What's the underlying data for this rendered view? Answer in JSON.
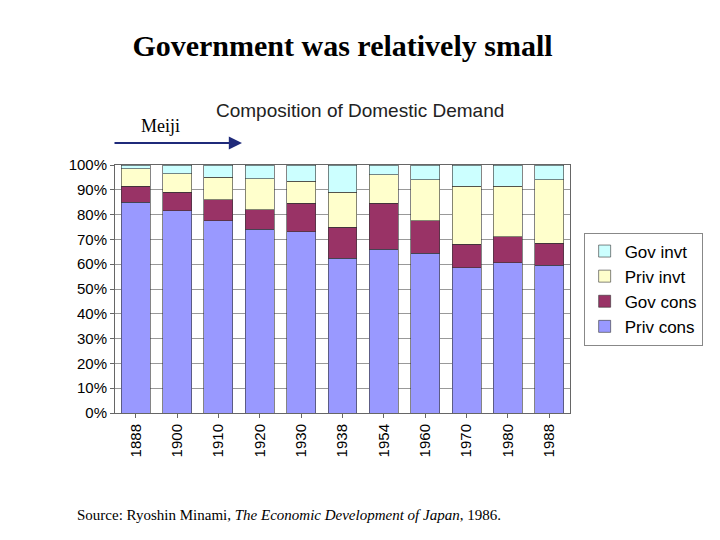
{
  "chart_data": {
    "type": "bar",
    "heading": "Government was relatively small",
    "title": "Composition of Domestic Demand",
    "annotations": [
      {
        "text": "Meiji"
      }
    ],
    "source": {
      "prefix": "Source: Ryoshin Minami, ",
      "book": "The Economic Development of Japan",
      "suffix": ", 1986."
    },
    "stacked": true,
    "grid": true,
    "legend": "right",
    "categories": [
      "1888",
      "1900",
      "1910",
      "1920",
      "1930",
      "1938",
      "1954",
      "1960",
      "1970",
      "1980",
      "1988"
    ],
    "series": [
      {
        "name": "Priv cons",
        "color": "#9999ff",
        "values": [
          85,
          81.5,
          77.5,
          74,
          73,
          62.5,
          66,
          64.5,
          58.5,
          60.5,
          59.5
        ]
      },
      {
        "name": "Gov cons",
        "color": "#993366",
        "values": [
          6.5,
          7.5,
          8.5,
          8,
          11.5,
          12.5,
          18.5,
          13,
          9.5,
          10.5,
          9
        ]
      },
      {
        "name": "Priv invt",
        "color": "#ffffcc",
        "values": [
          7,
          7.5,
          9,
          12.5,
          9,
          14,
          11.5,
          16.5,
          23.5,
          20.5,
          25.5
        ]
      },
      {
        "name": "Gov invt",
        "color": "#ccffff",
        "values": [
          1.5,
          3.5,
          5,
          5.5,
          6.5,
          11,
          4,
          6,
          8.5,
          8.5,
          6
        ]
      }
    ],
    "ylim": [
      0,
      100
    ],
    "yticks": [
      {
        "value": 0,
        "label": "0%"
      },
      {
        "value": 10,
        "label": "10%"
      },
      {
        "value": 20,
        "label": "20%"
      },
      {
        "value": 30,
        "label": "30%"
      },
      {
        "value": 40,
        "label": "40%"
      },
      {
        "value": 50,
        "label": "50%"
      },
      {
        "value": 60,
        "label": "60%"
      },
      {
        "value": 70,
        "label": "70%"
      },
      {
        "value": 80,
        "label": "80%"
      },
      {
        "value": 90,
        "label": "90%"
      },
      {
        "value": 100,
        "label": "100%"
      }
    ]
  }
}
